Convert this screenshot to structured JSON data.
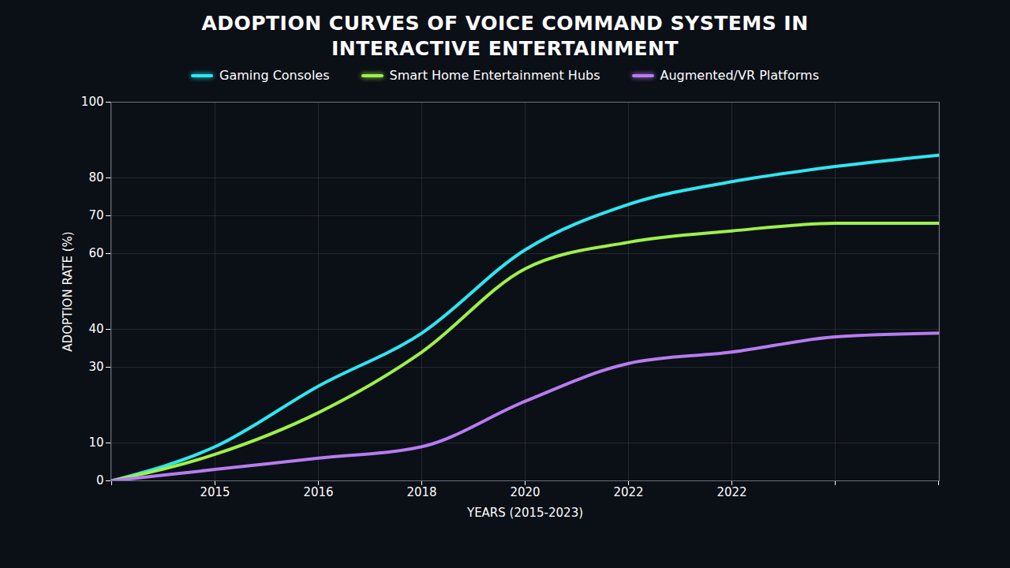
{
  "chart_data": {
    "type": "line",
    "title": "ADOPTION CURVES OF VOICE COMMAND SYSTEMS IN INTERACTIVE ENTERTAINMENT",
    "x_label": "YEARS (2015-2023)",
    "y_label": "ADOPTION RATE (%)",
    "categories": [
      null,
      "2015",
      "2016",
      "2018",
      "2020",
      "2022",
      "2022",
      null,
      null
    ],
    "series": [
      {
        "name": "Gaming Consoles",
        "color": "#2ee6f0",
        "values": [
          0,
          9,
          25,
          39,
          61,
          73,
          79,
          83,
          86
        ]
      },
      {
        "name": "Smart Home Entertainment Hubs",
        "color": "#9ef04a",
        "values": [
          0,
          7,
          18,
          34,
          56,
          63,
          66,
          68,
          68
        ]
      },
      {
        "name": "Augmented/VR Platforms",
        "color": "#b77cf0",
        "values": [
          0,
          3,
          6,
          9,
          21,
          31,
          34,
          38,
          39
        ]
      }
    ],
    "ylim": [
      0,
      100
    ],
    "yticks": [
      0,
      10,
      30,
      40,
      60,
      70,
      80,
      100
    ],
    "grid": true,
    "legend": "top"
  }
}
